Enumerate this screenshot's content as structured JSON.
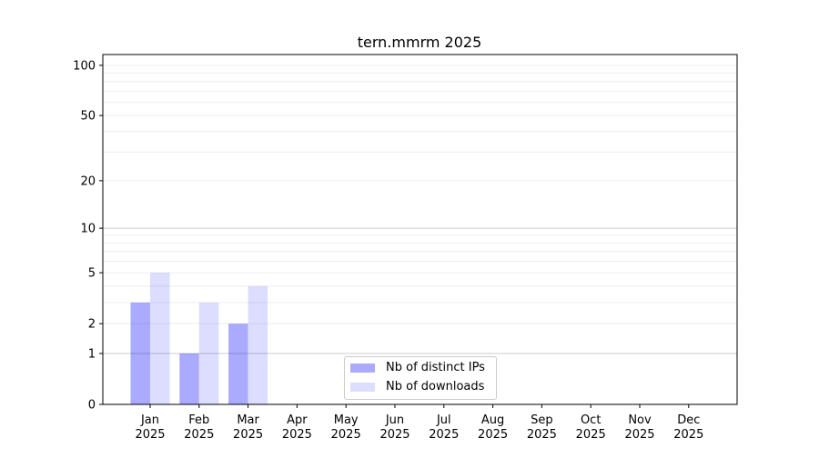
{
  "chart_data": {
    "type": "bar",
    "title": "tern.mmrm 2025",
    "xlabel": "",
    "ylabel": "",
    "yscale": "log1p",
    "ylim": [
      0,
      116
    ],
    "yticks": [
      0,
      1,
      2,
      5,
      10,
      20,
      50,
      100
    ],
    "ytick_labels": [
      "0",
      "1",
      "2",
      "5",
      "10",
      "20",
      "50",
      "100"
    ],
    "grid": true,
    "legend_position": "bottom-center",
    "categories": [
      "Jan\n2025",
      "Feb\n2025",
      "Mar\n2025",
      "Apr\n2025",
      "May\n2025",
      "Jun\n2025",
      "Jul\n2025",
      "Aug\n2025",
      "Sep\n2025",
      "Oct\n2025",
      "Nov\n2025",
      "Dec\n2025"
    ],
    "series": [
      {
        "name": "Nb of distinct IPs",
        "color": "#aaaaff",
        "values": [
          3,
          1,
          2,
          0,
          0,
          0,
          0,
          0,
          0,
          0,
          0,
          0
        ]
      },
      {
        "name": "Nb of downloads",
        "color": "#ddddff",
        "values": [
          5,
          3,
          4,
          0,
          0,
          0,
          0,
          0,
          0,
          0,
          0,
          0
        ]
      }
    ]
  }
}
